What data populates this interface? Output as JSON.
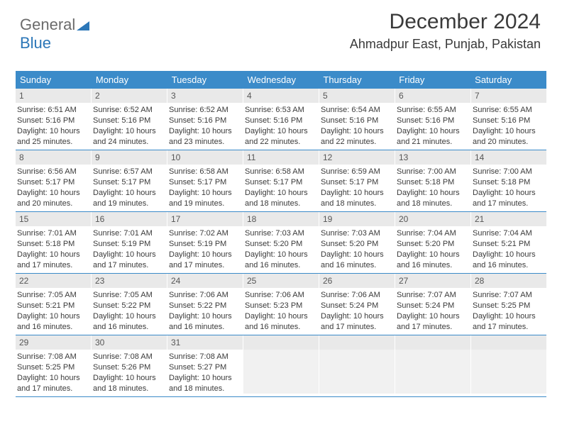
{
  "brand": {
    "line1": "General",
    "line2": "Blue"
  },
  "title": "December 2024",
  "location": "Ahmadpur East, Punjab, Pakistan",
  "colors": {
    "header_bg": "#3b8bc9",
    "header_text": "#ffffff",
    "daynum_bg": "#e9e9e9",
    "text": "#3a3a3a",
    "week_border": "#3b8bc9",
    "logo_grey": "#6b6b6b",
    "logo_blue": "#2c77b8"
  },
  "typography": {
    "title_fontsize": 30,
    "location_fontsize": 18,
    "dow_fontsize": 13,
    "daynum_fontsize": 12,
    "info_fontsize": 11,
    "family": "Arial"
  },
  "dow": [
    "Sunday",
    "Monday",
    "Tuesday",
    "Wednesday",
    "Thursday",
    "Friday",
    "Saturday"
  ],
  "days": [
    {
      "n": "1",
      "sunrise": "6:51 AM",
      "sunset": "5:16 PM",
      "daylight": "10 hours and 25 minutes."
    },
    {
      "n": "2",
      "sunrise": "6:52 AM",
      "sunset": "5:16 PM",
      "daylight": "10 hours and 24 minutes."
    },
    {
      "n": "3",
      "sunrise": "6:52 AM",
      "sunset": "5:16 PM",
      "daylight": "10 hours and 23 minutes."
    },
    {
      "n": "4",
      "sunrise": "6:53 AM",
      "sunset": "5:16 PM",
      "daylight": "10 hours and 22 minutes."
    },
    {
      "n": "5",
      "sunrise": "6:54 AM",
      "sunset": "5:16 PM",
      "daylight": "10 hours and 22 minutes."
    },
    {
      "n": "6",
      "sunrise": "6:55 AM",
      "sunset": "5:16 PM",
      "daylight": "10 hours and 21 minutes."
    },
    {
      "n": "7",
      "sunrise": "6:55 AM",
      "sunset": "5:16 PM",
      "daylight": "10 hours and 20 minutes."
    },
    {
      "n": "8",
      "sunrise": "6:56 AM",
      "sunset": "5:17 PM",
      "daylight": "10 hours and 20 minutes."
    },
    {
      "n": "9",
      "sunrise": "6:57 AM",
      "sunset": "5:17 PM",
      "daylight": "10 hours and 19 minutes."
    },
    {
      "n": "10",
      "sunrise": "6:58 AM",
      "sunset": "5:17 PM",
      "daylight": "10 hours and 19 minutes."
    },
    {
      "n": "11",
      "sunrise": "6:58 AM",
      "sunset": "5:17 PM",
      "daylight": "10 hours and 18 minutes."
    },
    {
      "n": "12",
      "sunrise": "6:59 AM",
      "sunset": "5:17 PM",
      "daylight": "10 hours and 18 minutes."
    },
    {
      "n": "13",
      "sunrise": "7:00 AM",
      "sunset": "5:18 PM",
      "daylight": "10 hours and 18 minutes."
    },
    {
      "n": "14",
      "sunrise": "7:00 AM",
      "sunset": "5:18 PM",
      "daylight": "10 hours and 17 minutes."
    },
    {
      "n": "15",
      "sunrise": "7:01 AM",
      "sunset": "5:18 PM",
      "daylight": "10 hours and 17 minutes."
    },
    {
      "n": "16",
      "sunrise": "7:01 AM",
      "sunset": "5:19 PM",
      "daylight": "10 hours and 17 minutes."
    },
    {
      "n": "17",
      "sunrise": "7:02 AM",
      "sunset": "5:19 PM",
      "daylight": "10 hours and 17 minutes."
    },
    {
      "n": "18",
      "sunrise": "7:03 AM",
      "sunset": "5:20 PM",
      "daylight": "10 hours and 16 minutes."
    },
    {
      "n": "19",
      "sunrise": "7:03 AM",
      "sunset": "5:20 PM",
      "daylight": "10 hours and 16 minutes."
    },
    {
      "n": "20",
      "sunrise": "7:04 AM",
      "sunset": "5:20 PM",
      "daylight": "10 hours and 16 minutes."
    },
    {
      "n": "21",
      "sunrise": "7:04 AM",
      "sunset": "5:21 PM",
      "daylight": "10 hours and 16 minutes."
    },
    {
      "n": "22",
      "sunrise": "7:05 AM",
      "sunset": "5:21 PM",
      "daylight": "10 hours and 16 minutes."
    },
    {
      "n": "23",
      "sunrise": "7:05 AM",
      "sunset": "5:22 PM",
      "daylight": "10 hours and 16 minutes."
    },
    {
      "n": "24",
      "sunrise": "7:06 AM",
      "sunset": "5:22 PM",
      "daylight": "10 hours and 16 minutes."
    },
    {
      "n": "25",
      "sunrise": "7:06 AM",
      "sunset": "5:23 PM",
      "daylight": "10 hours and 16 minutes."
    },
    {
      "n": "26",
      "sunrise": "7:06 AM",
      "sunset": "5:24 PM",
      "daylight": "10 hours and 17 minutes."
    },
    {
      "n": "27",
      "sunrise": "7:07 AM",
      "sunset": "5:24 PM",
      "daylight": "10 hours and 17 minutes."
    },
    {
      "n": "28",
      "sunrise": "7:07 AM",
      "sunset": "5:25 PM",
      "daylight": "10 hours and 17 minutes."
    },
    {
      "n": "29",
      "sunrise": "7:08 AM",
      "sunset": "5:25 PM",
      "daylight": "10 hours and 17 minutes."
    },
    {
      "n": "30",
      "sunrise": "7:08 AM",
      "sunset": "5:26 PM",
      "daylight": "10 hours and 18 minutes."
    },
    {
      "n": "31",
      "sunrise": "7:08 AM",
      "sunset": "5:27 PM",
      "daylight": "10 hours and 18 minutes."
    }
  ],
  "labels": {
    "sunrise": "Sunrise:",
    "sunset": "Sunset:",
    "daylight": "Daylight:"
  }
}
